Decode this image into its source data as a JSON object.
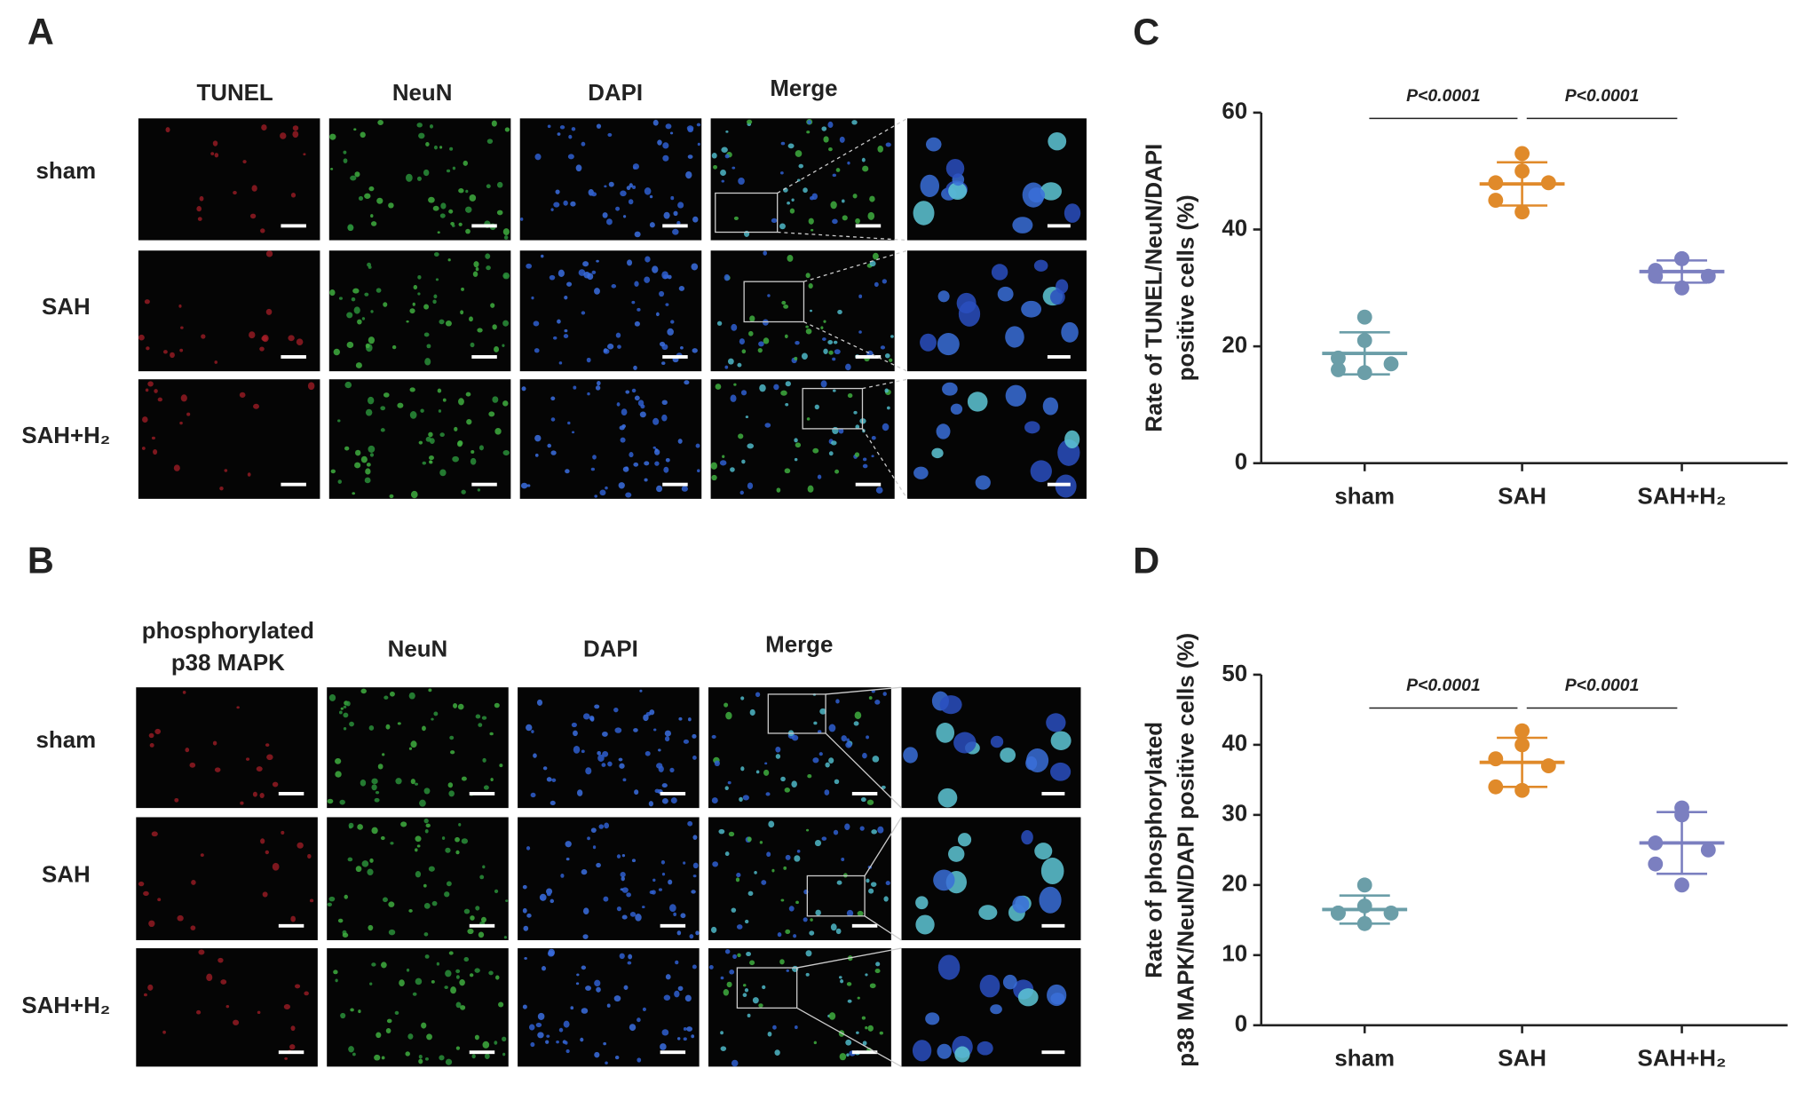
{
  "panel_a": {
    "label": "A",
    "columns": [
      "TUNEL",
      "NeuN",
      "DAPI",
      "Merge"
    ],
    "rows": [
      "sham",
      "SAH",
      "SAH+H₂"
    ]
  },
  "panel_b": {
    "label": "B",
    "columns": [
      [
        "phosphorylated",
        "p38 MAPK"
      ],
      "NeuN",
      "DAPI",
      "Merge"
    ],
    "rows": [
      "sham",
      "SAH",
      "SAH+H₂"
    ]
  },
  "chart_data": [
    {
      "type": "dot",
      "label": "C",
      "ylabel": [
        "Rate of TUNEL/NeuN/DAPI",
        "positive cells (%)"
      ],
      "categories": [
        "sham",
        "SAH",
        "SAH+H₂"
      ],
      "colors": [
        "#6b9ea8",
        "#e08a2a",
        "#7b7fc0"
      ],
      "values": [
        [
          25,
          21,
          18,
          17,
          16,
          15.5
        ],
        [
          53,
          50,
          48,
          48,
          45,
          43
        ],
        [
          35,
          35,
          33,
          32,
          32,
          30
        ]
      ],
      "means": [
        18.8,
        47.8,
        32.8
      ],
      "sds": [
        3.6,
        3.7,
        1.9
      ],
      "ylim": [
        0,
        60
      ],
      "yticks": [
        0,
        20,
        40,
        60
      ],
      "annotations": [
        "P<0.0001",
        "P<0.0001"
      ]
    },
    {
      "type": "dot",
      "label": "D",
      "ylabel": [
        "Rate of phosphorylated",
        "p38 MAPK/NeuN/DAPI positive cells (%)"
      ],
      "categories": [
        "sham",
        "SAH",
        "SAH+H₂"
      ],
      "colors": [
        "#6b9ea8",
        "#e08a2a",
        "#7b7fc0"
      ],
      "values": [
        [
          20,
          17,
          16,
          16,
          16,
          14.5
        ],
        [
          42,
          40,
          38,
          37,
          34,
          33.5
        ],
        [
          31,
          30,
          26,
          25,
          23,
          20
        ]
      ],
      "means": [
        16.5,
        37.5,
        26
      ],
      "sds": [
        2,
        3.5,
        4.4
      ],
      "ylim": [
        0,
        50
      ],
      "yticks": [
        0,
        10,
        20,
        30,
        40,
        50
      ],
      "annotations": [
        "P<0.0001",
        "P<0.0001"
      ]
    }
  ]
}
